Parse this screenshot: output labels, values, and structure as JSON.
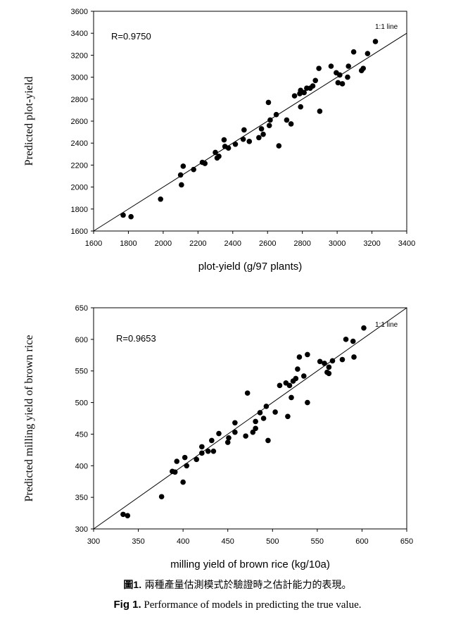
{
  "chart_data": [
    {
      "type": "scatter",
      "xlabel": "plot-yield (g/97 plants)",
      "ylabel": "Predicted plot-yield",
      "xlim": [
        1600,
        3400
      ],
      "ylim": [
        1600,
        3600
      ],
      "xticks": [
        1600,
        1800,
        2000,
        2200,
        2400,
        2600,
        2800,
        3000,
        3200,
        3400
      ],
      "yticks": [
        1600,
        1800,
        2000,
        2200,
        2400,
        2600,
        2800,
        3000,
        3200,
        3400,
        3600
      ],
      "annotation": "R=0.9750",
      "reference_line_label": "1:1 line",
      "grid": false,
      "points": [
        [
          1770,
          1745
        ],
        [
          1815,
          1730
        ],
        [
          1985,
          1890
        ],
        [
          2100,
          2110
        ],
        [
          2105,
          2020
        ],
        [
          2115,
          2190
        ],
        [
          2175,
          2160
        ],
        [
          2225,
          2225
        ],
        [
          2240,
          2215
        ],
        [
          2300,
          2315
        ],
        [
          2310,
          2265
        ],
        [
          2320,
          2280
        ],
        [
          2350,
          2430
        ],
        [
          2355,
          2370
        ],
        [
          2375,
          2355
        ],
        [
          2415,
          2390
        ],
        [
          2460,
          2435
        ],
        [
          2465,
          2520
        ],
        [
          2495,
          2415
        ],
        [
          2550,
          2450
        ],
        [
          2565,
          2530
        ],
        [
          2575,
          2480
        ],
        [
          2605,
          2770
        ],
        [
          2610,
          2560
        ],
        [
          2615,
          2610
        ],
        [
          2650,
          2660
        ],
        [
          2665,
          2375
        ],
        [
          2710,
          2610
        ],
        [
          2735,
          2575
        ],
        [
          2755,
          2830
        ],
        [
          2785,
          2850
        ],
        [
          2790,
          2730
        ],
        [
          2790,
          2880
        ],
        [
          2810,
          2860
        ],
        [
          2825,
          2900
        ],
        [
          2845,
          2900
        ],
        [
          2860,
          2920
        ],
        [
          2875,
          2970
        ],
        [
          2895,
          3080
        ],
        [
          2900,
          2690
        ],
        [
          2965,
          3100
        ],
        [
          2995,
          3040
        ],
        [
          3005,
          2950
        ],
        [
          3015,
          3020
        ],
        [
          3030,
          2940
        ],
        [
          3060,
          3000
        ],
        [
          3065,
          3100
        ],
        [
          3095,
          3230
        ],
        [
          3140,
          3060
        ],
        [
          3150,
          3080
        ],
        [
          3175,
          3215
        ],
        [
          3220,
          3325
        ]
      ]
    },
    {
      "type": "scatter",
      "xlabel": "milling yield of brown rice (kg/10a)",
      "ylabel": "Predicted milling yield of brown rice",
      "xlim": [
        300,
        650
      ],
      "ylim": [
        300,
        650
      ],
      "xticks": [
        300,
        350,
        400,
        450,
        500,
        550,
        600,
        650
      ],
      "yticks": [
        300,
        350,
        400,
        450,
        500,
        550,
        600,
        650
      ],
      "annotation": "R=0.9653",
      "reference_line_label": "1:1 line",
      "grid": false,
      "points": [
        [
          333,
          323
        ],
        [
          338,
          321
        ],
        [
          376,
          351
        ],
        [
          388,
          391
        ],
        [
          391,
          390
        ],
        [
          393,
          407
        ],
        [
          400,
          374
        ],
        [
          402,
          413
        ],
        [
          404,
          400
        ],
        [
          415,
          410
        ],
        [
          421,
          420
        ],
        [
          421,
          430
        ],
        [
          428,
          423
        ],
        [
          432,
          440
        ],
        [
          434,
          423
        ],
        [
          440,
          451
        ],
        [
          450,
          437
        ],
        [
          451,
          444
        ],
        [
          458,
          468
        ],
        [
          458,
          453
        ],
        [
          470,
          447
        ],
        [
          472,
          515
        ],
        [
          478,
          453
        ],
        [
          481,
          459
        ],
        [
          481,
          470
        ],
        [
          486,
          484
        ],
        [
          490,
          475
        ],
        [
          493,
          494
        ],
        [
          495,
          440
        ],
        [
          503,
          485
        ],
        [
          508,
          527
        ],
        [
          515,
          531
        ],
        [
          517,
          478
        ],
        [
          519,
          527
        ],
        [
          521,
          508
        ],
        [
          523,
          534
        ],
        [
          526,
          538
        ],
        [
          528,
          553
        ],
        [
          530,
          572
        ],
        [
          535,
          542
        ],
        [
          539,
          576
        ],
        [
          539,
          500
        ],
        [
          553,
          565
        ],
        [
          558,
          562
        ],
        [
          561,
          548
        ],
        [
          563,
          556
        ],
        [
          563,
          546
        ],
        [
          567,
          566
        ],
        [
          578,
          568
        ],
        [
          582,
          600
        ],
        [
          590,
          597
        ],
        [
          591,
          572
        ],
        [
          602,
          618
        ]
      ]
    }
  ],
  "caption": {
    "zh_label": "圖1.",
    "zh_text": "兩種產量估測模式於驗證時之估計能力的表現。",
    "en_label": "Fig 1.",
    "en_text": "Performance of models in predicting the true value."
  }
}
